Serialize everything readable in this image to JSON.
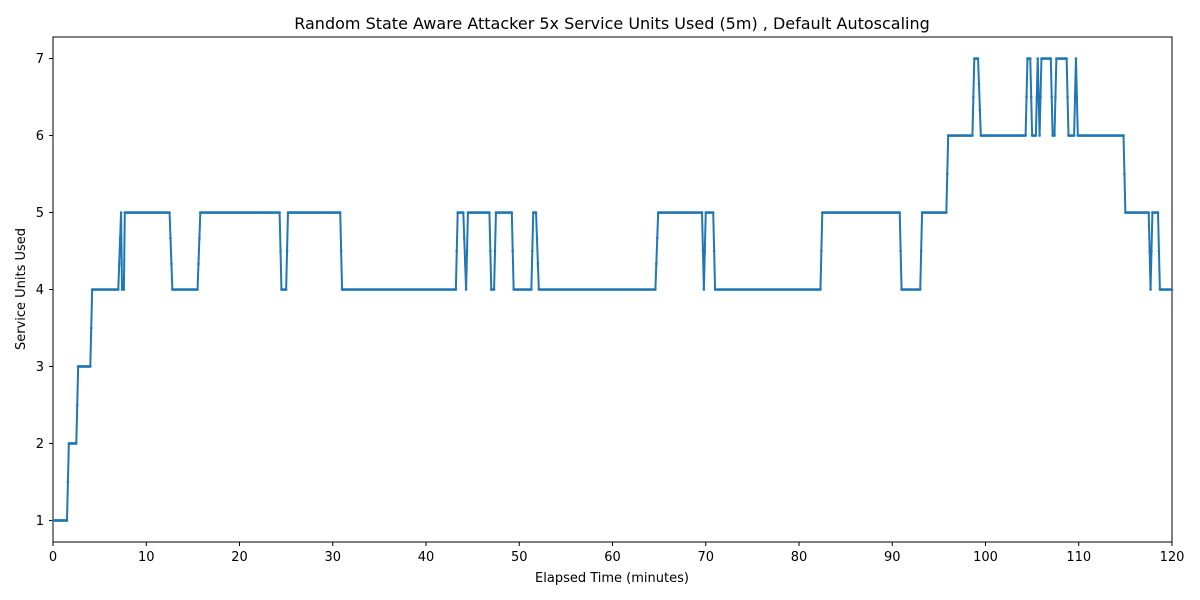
{
  "chart_data": {
    "type": "line",
    "title": "Random State Aware Attacker 5x Service Units Used (5m) , Default Autoscaling",
    "xlabel": "Elapsed Time (minutes)",
    "ylabel": "Service Units Used",
    "xlim": [
      0,
      120
    ],
    "ylim": [
      0.72,
      7.28
    ],
    "xticks": [
      0,
      10,
      20,
      30,
      40,
      50,
      60,
      70,
      80,
      90,
      100,
      110,
      120
    ],
    "yticks": [
      1,
      2,
      3,
      4,
      5,
      6,
      7
    ],
    "grid": false,
    "legend": "none",
    "line_color": "#1f77b4",
    "marker": "dot",
    "series": [
      {
        "x": [
          0,
          1.5,
          1.7,
          2.5,
          2.7,
          2.8,
          4.0,
          4.2,
          7.0,
          7.3,
          7.4,
          7.6,
          7.7,
          12.5,
          12.8,
          15.5,
          15.8,
          24.3,
          24.5,
          25.0,
          25.2,
          30.8,
          31.0,
          43.2,
          43.4,
          44.0,
          44.3,
          44.5,
          46.8,
          47.0,
          47.3,
          47.5,
          49.2,
          49.4,
          51.3,
          51.5,
          51.8,
          52.1,
          64.6,
          64.9,
          69.6,
          69.8,
          70.0,
          70.8,
          71.0,
          82.3,
          82.5,
          90.8,
          91.0,
          93.0,
          93.2,
          95.8,
          96.0,
          98.6,
          98.8,
          99.2,
          99.5,
          104.3,
          104.5,
          104.8,
          105.0,
          105.4,
          105.6,
          105.8,
          106.0,
          107.0,
          107.2,
          107.4,
          107.6,
          108.7,
          108.9,
          109.5,
          109.7,
          109.9,
          114.8,
          115.0,
          117.5,
          117.7,
          117.9,
          118.5,
          118.7,
          120.0
        ],
        "y": [
          1,
          1,
          2,
          2,
          3,
          3,
          3,
          4,
          4,
          5,
          4,
          4,
          5,
          5,
          4,
          4,
          5,
          5,
          4,
          4,
          5,
          5,
          4,
          4,
          5,
          5,
          4,
          5,
          5,
          4,
          4,
          5,
          5,
          4,
          4,
          5,
          5,
          4,
          4,
          5,
          5,
          4,
          5,
          5,
          4,
          4,
          5,
          5,
          4,
          4,
          5,
          5,
          6,
          6,
          7,
          7,
          6,
          6,
          7,
          7,
          6,
          6,
          7,
          6,
          7,
          7,
          6,
          6,
          7,
          7,
          6,
          6,
          7,
          6,
          6,
          5,
          5,
          4,
          5,
          5,
          4,
          4
        ]
      }
    ]
  }
}
